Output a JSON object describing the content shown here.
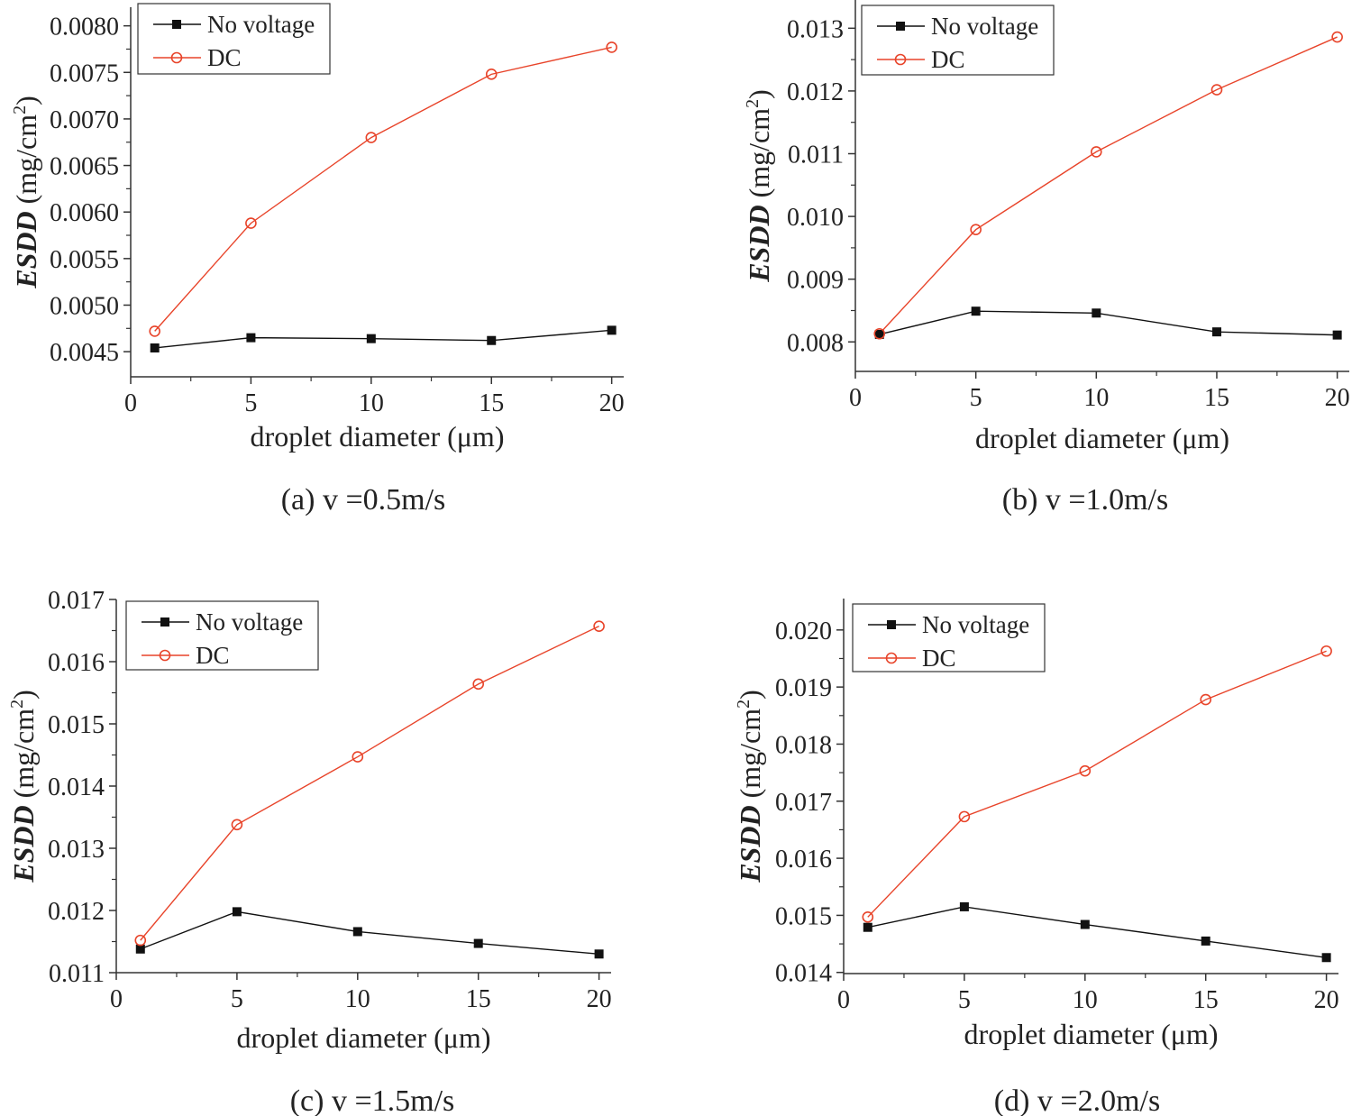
{
  "figure": {
    "colors": {
      "no_voltage": "#111111",
      "dc": "#e8442a",
      "axis": "#333333"
    },
    "markers": {
      "no_voltage": "filled-square",
      "dc": "open-circle"
    }
  },
  "chart_data": [
    {
      "type": "line",
      "caption": "(a) v =0.5m/s",
      "xlabel": "droplet diameter (μm)",
      "ylabel_main": "ESDD",
      "ylabel_unit_pre": " (mg/cm",
      "ylabel_unit_sup": "2",
      "ylabel_unit_post": ")",
      "x": [
        1,
        5,
        10,
        15,
        20
      ],
      "xlim": [
        0,
        20.5
      ],
      "xticks": [
        0,
        5,
        10,
        15,
        20
      ],
      "xtick_labels": [
        "0",
        "5",
        "10",
        "15",
        "20"
      ],
      "ylim": [
        0.00423,
        0.0082
      ],
      "yticks": [
        0.0045,
        0.005,
        0.0055,
        0.006,
        0.0065,
        0.007,
        0.0075,
        0.008
      ],
      "ytick_labels": [
        "0.0045",
        "0.0050",
        "0.0055",
        "0.0060",
        "0.0065",
        "0.0070",
        "0.0075",
        "0.0080"
      ],
      "legend_position": "top-left",
      "series": [
        {
          "name": "No voltage",
          "values": [
            0.00454,
            0.00465,
            0.00464,
            0.00462,
            0.00473
          ]
        },
        {
          "name": "DC",
          "values": [
            0.00472,
            0.00588,
            0.0068,
            0.00748,
            0.00777
          ]
        }
      ]
    },
    {
      "type": "line",
      "caption": "(b) v =1.0m/s",
      "xlabel": "droplet diameter (μm)",
      "ylabel_main": "ESDD",
      "ylabel_unit_pre": " (mg/cm",
      "ylabel_unit_sup": "2",
      "ylabel_unit_post": ")",
      "x": [
        1,
        5,
        10,
        15,
        20
      ],
      "xlim": [
        0,
        20.5
      ],
      "xticks": [
        0,
        5,
        10,
        15,
        20
      ],
      "xtick_labels": [
        "0",
        "5",
        "10",
        "15",
        "20"
      ],
      "ylim": [
        0.00753,
        0.01345
      ],
      "yticks": [
        0.008,
        0.009,
        0.01,
        0.011,
        0.012,
        0.013
      ],
      "ytick_labels": [
        "0.008",
        "0.009",
        "0.010",
        "0.011",
        "0.012",
        "0.013"
      ],
      "legend_position": "top-left",
      "series": [
        {
          "name": "No voltage",
          "values": [
            0.00812,
            0.00849,
            0.00846,
            0.00816,
            0.00811
          ]
        },
        {
          "name": "DC",
          "values": [
            0.00813,
            0.00979,
            0.01103,
            0.01202,
            0.01286
          ]
        }
      ]
    },
    {
      "type": "line",
      "caption": "(c) v =1.5m/s",
      "xlabel": "droplet diameter (μm)",
      "ylabel_main": "ESDD",
      "ylabel_unit_pre": " (mg/cm",
      "ylabel_unit_sup": "2",
      "ylabel_unit_post": ")",
      "x": [
        1,
        5,
        10,
        15,
        20
      ],
      "xlim": [
        0,
        20.5
      ],
      "xticks": [
        0,
        5,
        10,
        15,
        20
      ],
      "xtick_labels": [
        "0",
        "5",
        "10",
        "15",
        "20"
      ],
      "ylim": [
        0.011,
        0.017
      ],
      "yticks": [
        0.011,
        0.012,
        0.013,
        0.014,
        0.015,
        0.016,
        0.017
      ],
      "ytick_labels": [
        "0.011",
        "0.012",
        "0.013",
        "0.014",
        "0.015",
        "0.016",
        "0.017"
      ],
      "legend_position": "top-left",
      "series": [
        {
          "name": "No voltage",
          "values": [
            0.01138,
            0.01198,
            0.01166,
            0.01147,
            0.0113
          ]
        },
        {
          "name": "DC",
          "values": [
            0.01152,
            0.01338,
            0.01447,
            0.01564,
            0.01657
          ]
        }
      ]
    },
    {
      "type": "line",
      "caption": "(d) v =2.0m/s",
      "xlabel": "droplet diameter (μm)",
      "ylabel_main": "ESDD",
      "ylabel_unit_pre": " (mg/cm",
      "ylabel_unit_sup": "2",
      "ylabel_unit_post": ")",
      "x": [
        1,
        5,
        10,
        15,
        20
      ],
      "xlim": [
        0,
        20.5
      ],
      "xticks": [
        0,
        5,
        10,
        15,
        20
      ],
      "xtick_labels": [
        "0",
        "5",
        "10",
        "15",
        "20"
      ],
      "ylim": [
        0.01398,
        0.02055
      ],
      "yticks": [
        0.014,
        0.015,
        0.016,
        0.017,
        0.018,
        0.019,
        0.02
      ],
      "ytick_labels": [
        "0.014",
        "0.015",
        "0.016",
        "0.017",
        "0.018",
        "0.019",
        "0.020"
      ],
      "legend_position": "top-left",
      "series": [
        {
          "name": "No voltage",
          "values": [
            0.01479,
            0.01515,
            0.01484,
            0.01455,
            0.01426
          ]
        },
        {
          "name": "DC",
          "values": [
            0.01497,
            0.01673,
            0.01753,
            0.01878,
            0.01963
          ]
        }
      ]
    }
  ]
}
